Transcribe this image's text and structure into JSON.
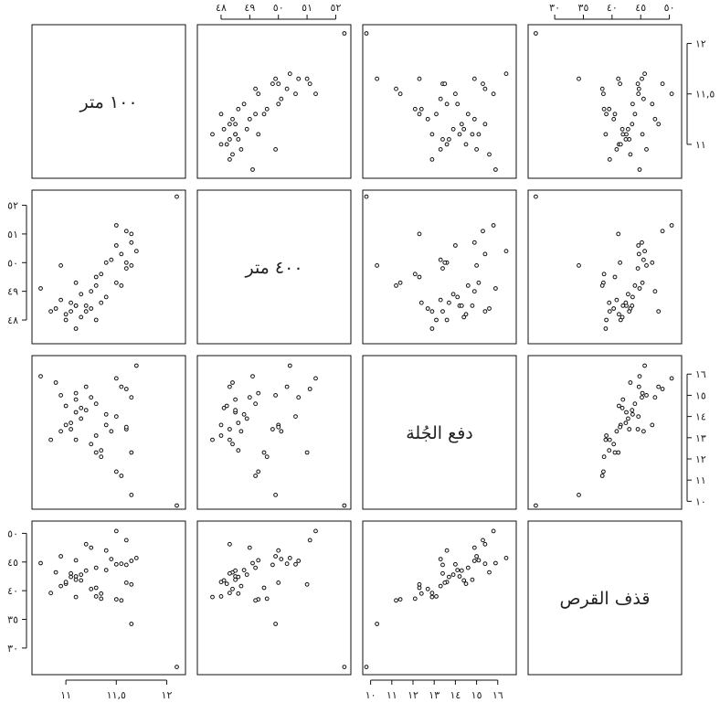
{
  "chart_data": {
    "type": "scatter",
    "matrix_type": "scatterplot-matrix",
    "grid": false,
    "variables": [
      {
        "key": "m100",
        "label": "١٠٠ متر",
        "ticks": [
          11,
          11.5,
          12
        ],
        "tick_labels": [
          "١١",
          "١١,٥",
          "١٢"
        ],
        "range": [
          10.7,
          12.15
        ]
      },
      {
        "key": "m400",
        "label": "٤٠٠ متر",
        "ticks": [
          48,
          49,
          50,
          51,
          52
        ],
        "tick_labels": [
          "٤٨",
          "٤٩",
          "٥٠",
          "٥١",
          "٥٢"
        ],
        "range": [
          47.3,
          52.4
        ]
      },
      {
        "key": "shot",
        "label": "دفع الجُلة",
        "ticks": [
          10,
          11,
          12,
          13,
          14,
          15,
          16
        ],
        "tick_labels": [
          "١٠",
          "١١",
          "١٢",
          "١٣",
          "١٤",
          "١٥",
          "١٦"
        ],
        "range": [
          9.8,
          16.7
        ]
      },
      {
        "key": "discus",
        "label": "قذف القرص",
        "ticks": [
          30,
          35,
          40,
          45,
          50
        ],
        "tick_labels": [
          "٣٠",
          "٣٥",
          "٤٠",
          "٤٥",
          "٥٠"
        ],
        "range": [
          26,
          51.5
        ]
      }
    ],
    "points": [
      {
        "m100": 12.1,
        "m400": 52.3,
        "shot": 9.8,
        "discus": 26.7
      },
      {
        "m100": 10.75,
        "m400": 49.1,
        "shot": 15.9,
        "discus": 44.8
      },
      {
        "m100": 10.9,
        "m400": 48.4,
        "shot": 15.6,
        "discus": 43.2
      },
      {
        "m100": 10.95,
        "m400": 49.9,
        "shot": 15.0,
        "discus": 46.0
      },
      {
        "m100": 11.1,
        "m400": 49.3,
        "shot": 15.1,
        "discus": 45.3
      },
      {
        "m100": 11.0,
        "m400": 48.2,
        "shot": 14.5,
        "discus": 41.2
      },
      {
        "m100": 11.1,
        "m400": 48.5,
        "shot": 14.2,
        "discus": 42.5
      },
      {
        "m100": 11.15,
        "m400": 48.9,
        "shot": 13.9,
        "discus": 42.8
      },
      {
        "m100": 11.2,
        "m400": 48.5,
        "shot": 14.3,
        "discus": 43.5
      },
      {
        "m100": 11.0,
        "m400": 48.0,
        "shot": 13.6,
        "discus": 41.5
      },
      {
        "m100": 11.05,
        "m400": 48.3,
        "shot": 13.4,
        "discus": 43.0
      },
      {
        "m100": 11.3,
        "m400": 49.2,
        "shot": 14.6,
        "discus": 44.0
      },
      {
        "m100": 10.95,
        "m400": 48.7,
        "shot": 13.3,
        "discus": 40.8
      },
      {
        "m100": 11.35,
        "m400": 48.6,
        "shot": 12.4,
        "discus": 39.5
      },
      {
        "m100": 11.1,
        "m400": 47.7,
        "shot": 12.9,
        "discus": 38.9
      },
      {
        "m100": 11.25,
        "m400": 49.0,
        "shot": 14.9,
        "discus": 47.5
      },
      {
        "m100": 11.2,
        "m400": 48.3,
        "shot": 15.4,
        "discus": 48.1
      },
      {
        "m100": 11.05,
        "m400": 48.6,
        "shot": 13.7,
        "discus": 42.4
      },
      {
        "m100": 10.85,
        "m400": 48.3,
        "shot": 12.9,
        "discus": 39.6
      },
      {
        "m100": 11.15,
        "m400": 48.1,
        "shot": 14.4,
        "discus": 41.8
      },
      {
        "m100": 11.4,
        "m400": 50.0,
        "shot": 13.6,
        "discus": 47.0
      },
      {
        "m100": 11.25,
        "m400": 48.4,
        "shot": 12.7,
        "discus": 40.3
      },
      {
        "m100": 11.3,
        "m400": 48.0,
        "shot": 13.1,
        "discus": 39.0
      },
      {
        "m100": 11.45,
        "m400": 50.1,
        "shot": 13.3,
        "discus": 45.5
      },
      {
        "m100": 11.5,
        "m400": 50.6,
        "shot": 14.0,
        "discus": 44.6
      },
      {
        "m100": 11.5,
        "m400": 51.3,
        "shot": 15.8,
        "discus": 50.4
      },
      {
        "m100": 11.6,
        "m400": 49.8,
        "shot": 13.4,
        "discus": 44.5
      },
      {
        "m100": 11.55,
        "m400": 50.3,
        "shot": 15.4,
        "discus": 44.7
      },
      {
        "m100": 11.6,
        "m400": 51.1,
        "shot": 15.3,
        "discus": 48.8
      },
      {
        "m100": 11.65,
        "m400": 51.0,
        "shot": 12.3,
        "discus": 41.1
      },
      {
        "m100": 11.65,
        "m400": 50.7,
        "shot": 14.9,
        "discus": 45.2
      },
      {
        "m100": 11.6,
        "m400": 50.0,
        "shot": 13.5,
        "discus": 41.4
      },
      {
        "m100": 11.7,
        "m400": 50.4,
        "shot": 16.4,
        "discus": 45.7
      },
      {
        "m100": 11.5,
        "m400": 49.3,
        "shot": 11.4,
        "discus": 38.5
      },
      {
        "m100": 11.55,
        "m400": 49.2,
        "shot": 11.2,
        "discus": 38.3
      },
      {
        "m100": 11.35,
        "m400": 49.6,
        "shot": 12.1,
        "discus": 38.6
      },
      {
        "m100": 11.65,
        "m400": 49.9,
        "shot": 10.3,
        "discus": 34.2
      },
      {
        "m100": 11.1,
        "m400": 48.5,
        "shot": 14.8,
        "discus": 41.9
      },
      {
        "m100": 11.3,
        "m400": 49.5,
        "shot": 12.3,
        "discus": 40.5
      },
      {
        "m100": 11.4,
        "m400": 48.8,
        "shot": 14.1,
        "discus": 43.6
      }
    ]
  }
}
